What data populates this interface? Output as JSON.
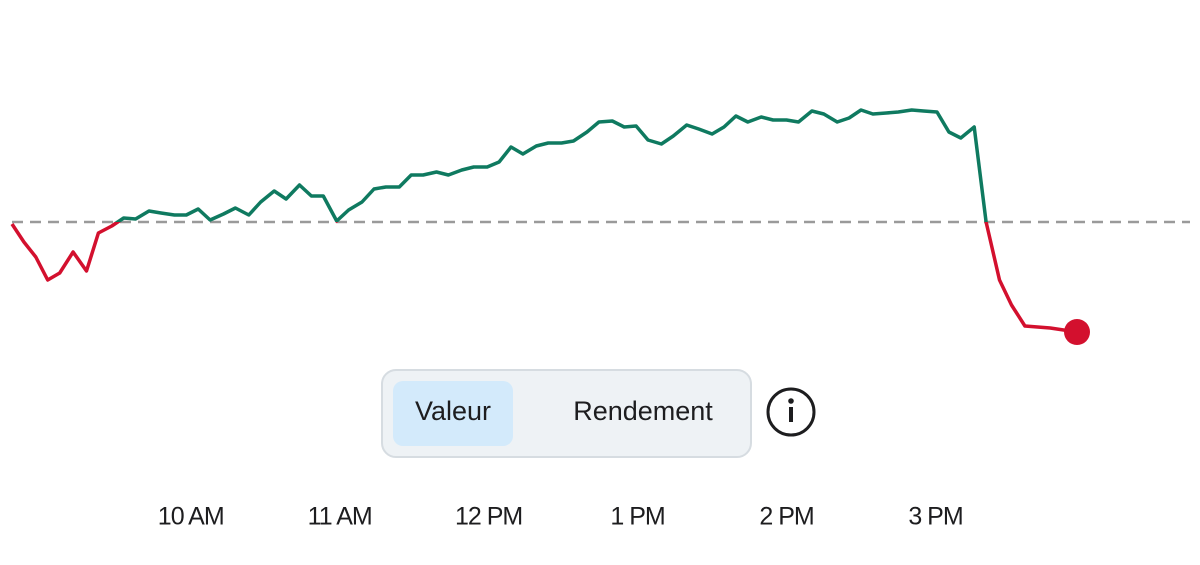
{
  "chart_data": {
    "type": "line",
    "x": [
      8.8,
      8.88,
      8.96,
      9.04,
      9.12,
      9.21,
      9.3,
      9.38,
      9.47,
      9.55,
      9.63,
      9.72,
      9.8,
      9.89,
      9.97,
      10.05,
      10.13,
      10.22,
      10.3,
      10.39,
      10.47,
      10.56,
      10.64,
      10.73,
      10.81,
      10.89,
      10.98,
      11.06,
      11.15,
      11.23,
      11.31,
      11.4,
      11.48,
      11.56,
      11.65,
      11.73,
      11.82,
      11.9,
      11.99,
      12.07,
      12.15,
      12.23,
      12.32,
      12.4,
      12.49,
      12.57,
      12.66,
      12.74,
      12.83,
      12.91,
      12.99,
      13.07,
      13.16,
      13.24,
      13.33,
      13.41,
      13.5,
      13.58,
      13.66,
      13.74,
      13.83,
      13.91,
      14.0,
      14.08,
      14.17,
      14.25,
      14.34,
      14.42,
      14.5,
      14.58,
      14.67,
      14.75,
      14.84,
      14.92,
      15.01,
      15.09,
      15.17,
      15.26,
      15.34,
      15.43,
      15.51,
      15.6,
      15.77,
      15.95
    ],
    "values": [
      -0.2,
      -2.0,
      -3.5,
      -5.8,
      -5.1,
      -3.0,
      -4.9,
      -1.1,
      -0.4,
      0.4,
      0.3,
      1.1,
      0.9,
      0.7,
      0.7,
      1.3,
      0.2,
      0.8,
      1.4,
      0.7,
      2.0,
      3.1,
      2.3,
      3.7,
      2.6,
      2.6,
      0.1,
      1.2,
      2.0,
      3.3,
      3.5,
      3.5,
      4.7,
      4.7,
      5.0,
      4.7,
      5.2,
      5.5,
      5.5,
      6.0,
      7.5,
      6.8,
      7.6,
      7.9,
      7.9,
      8.1,
      9.0,
      10.0,
      10.1,
      9.5,
      9.6,
      8.2,
      7.8,
      8.6,
      9.7,
      9.3,
      8.8,
      9.5,
      10.6,
      10.0,
      10.5,
      10.2,
      10.2,
      10.0,
      11.1,
      10.8,
      10.0,
      10.4,
      11.2,
      10.8,
      10.9,
      11.0,
      11.2,
      11.1,
      11.0,
      9.0,
      8.4,
      9.5,
      0.0,
      -5.8,
      -8.3,
      -10.4,
      -10.6,
      -11.0
    ],
    "reference_line": 0,
    "up_color": "#0f7a60",
    "down_color": "#d3102e",
    "reference_color": "#9a9a9a",
    "xlim": [
      8.8,
      15.95
    ],
    "ylim": [
      -14,
      22
    ],
    "xticks": [
      {
        "value": 10,
        "label": "10 AM"
      },
      {
        "value": 11,
        "label": "11 AM"
      },
      {
        "value": 12,
        "label": "12 PM"
      },
      {
        "value": 13,
        "label": "1 PM"
      },
      {
        "value": 14,
        "label": "2 PM"
      },
      {
        "value": 15,
        "label": "3 PM"
      }
    ],
    "toggle": {
      "options": [
        "Valeur",
        "Rendement"
      ],
      "selected": 0
    }
  }
}
